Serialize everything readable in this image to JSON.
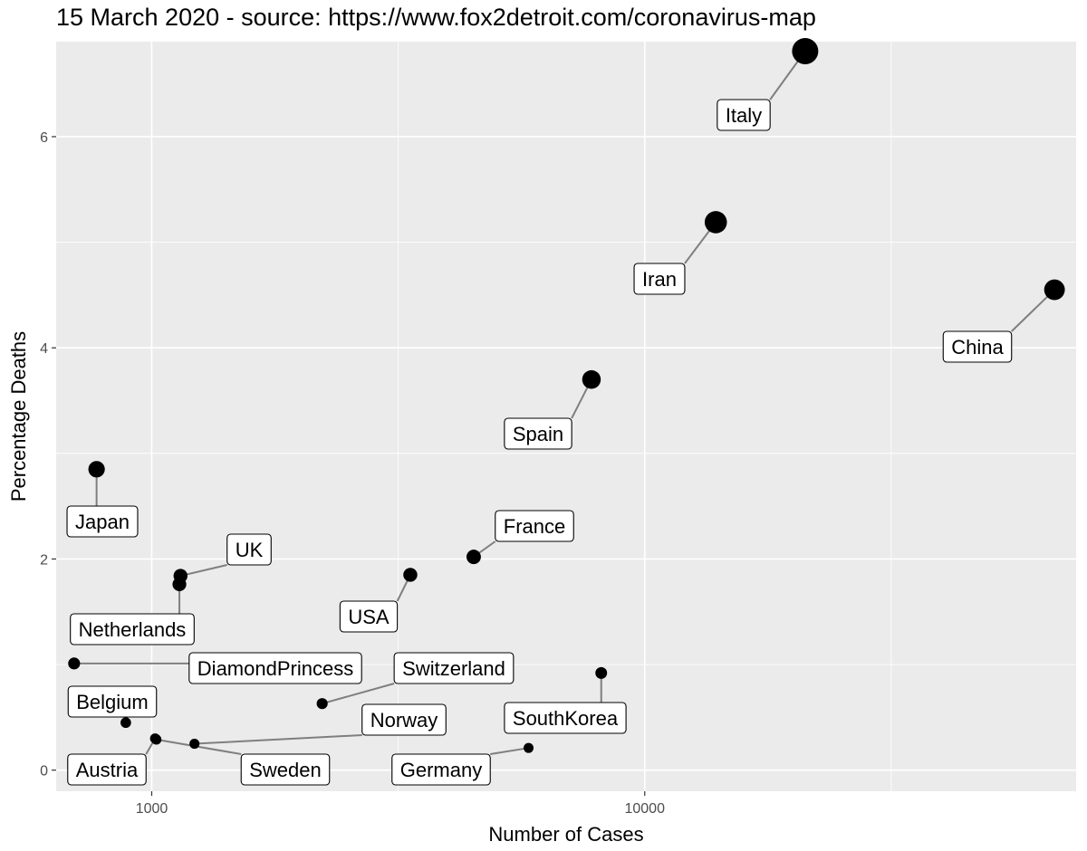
{
  "chart_data": {
    "type": "scatter",
    "title": "15 March 2020 - source: https://www.fox2detroit.com/coronavirus-map",
    "xlabel": "Number of Cases",
    "ylabel": "Percentage Deaths",
    "x_scale": "log10",
    "xlim": [
      640,
      75000
    ],
    "ylim": [
      -0.2,
      6.9
    ],
    "x_ticks": [
      1000,
      10000
    ],
    "x_tick_labels": [
      "1000",
      "10000"
    ],
    "y_ticks": [
      0,
      2,
      4,
      6
    ],
    "y_tick_labels": [
      "0",
      "2",
      "4",
      "6"
    ],
    "grid": true,
    "legend": "none",
    "points": [
      {
        "label": "Italy",
        "x": 21157,
        "y": 6.81
      },
      {
        "label": "Iran",
        "x": 13938,
        "y": 5.19
      },
      {
        "label": "China",
        "x": 67794,
        "y": 4.55
      },
      {
        "label": "Spain",
        "x": 7798,
        "y": 3.7
      },
      {
        "label": "Japan",
        "x": 773,
        "y": 2.85
      },
      {
        "label": "France",
        "x": 4499,
        "y": 2.02
      },
      {
        "label": "UK",
        "x": 1144,
        "y": 1.84
      },
      {
        "label": "USA",
        "x": 3346,
        "y": 1.85
      },
      {
        "label": "Netherlands",
        "x": 1138,
        "y": 1.76
      },
      {
        "label": "DiamondPrincess",
        "x": 696,
        "y": 1.01
      },
      {
        "label": "Switzerland",
        "x": 2217,
        "y": 0.63
      },
      {
        "label": "SouthKorea",
        "x": 8162,
        "y": 0.92
      },
      {
        "label": "Belgium",
        "x": 886,
        "y": 0.45
      },
      {
        "label": "Norway",
        "x": 1221,
        "y": 0.25
      },
      {
        "label": "Austria",
        "x": 1016,
        "y": 0.3
      },
      {
        "label": "Sweden",
        "x": 1022,
        "y": 0.29
      },
      {
        "label": "Germany",
        "x": 5813,
        "y": 0.21
      }
    ]
  }
}
